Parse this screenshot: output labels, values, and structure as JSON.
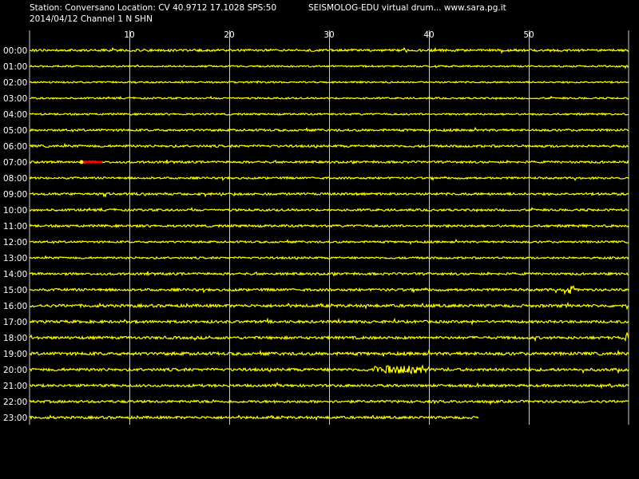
{
  "header": {
    "station_line": "Station: Conversano Location: CV 40.9712 17.1028 SPS:50",
    "brand_line": "SEISMOLOG-EDU virtual drum... www.sara.pg.it",
    "date_line": "2014/04/12  Channel 1 N SHN"
  },
  "chart_data": {
    "type": "line",
    "title": "",
    "xlabel": "",
    "ylabel": "",
    "xlim": [
      0,
      60
    ],
    "x_ticks": [
      10,
      20,
      30,
      40,
      50
    ],
    "x_tick_labels": [
      "10",
      "20",
      "30",
      "40",
      "50"
    ],
    "grid": true,
    "categories": [
      "00:00",
      "01:00",
      "02:00",
      "03:00",
      "04:00",
      "05:00",
      "06:00",
      "07:00",
      "08:00",
      "09:00",
      "10:00",
      "11:00",
      "12:00",
      "13:00",
      "14:00",
      "15:00",
      "16:00",
      "17:00",
      "18:00",
      "19:00",
      "20:00",
      "21:00",
      "22:00",
      "23:00"
    ],
    "series": [
      {
        "name": "",
        "end_minute": 60,
        "noise": 1.4
      },
      {
        "name": "",
        "end_minute": 60,
        "noise": 1.0
      },
      {
        "name": "",
        "end_minute": 60,
        "noise": 1.0
      },
      {
        "name": "",
        "end_minute": 60,
        "noise": 1.0
      },
      {
        "name": "",
        "end_minute": 60,
        "noise": 1.1
      },
      {
        "name": "",
        "end_minute": 60,
        "noise": 1.3
      },
      {
        "name": "",
        "end_minute": 60,
        "noise": 1.4
      },
      {
        "name": "",
        "end_minute": 60,
        "noise": 1.3
      },
      {
        "name": "",
        "end_minute": 60,
        "noise": 1.2
      },
      {
        "name": "",
        "end_minute": 60,
        "noise": 1.4
      },
      {
        "name": "",
        "end_minute": 60,
        "noise": 1.3
      },
      {
        "name": "",
        "end_minute": 60,
        "noise": 1.4
      },
      {
        "name": "",
        "end_minute": 60,
        "noise": 1.2
      },
      {
        "name": "",
        "end_minute": 60,
        "noise": 1.2
      },
      {
        "name": "",
        "end_minute": 60,
        "noise": 1.4
      },
      {
        "name": "",
        "end_minute": 60,
        "noise": 1.5
      },
      {
        "name": "",
        "end_minute": 60,
        "noise": 1.7
      },
      {
        "name": "",
        "end_minute": 60,
        "noise": 1.6
      },
      {
        "name": "",
        "end_minute": 60,
        "noise": 1.6
      },
      {
        "name": "",
        "end_minute": 60,
        "noise": 1.8
      },
      {
        "name": "",
        "end_minute": 60,
        "noise": 1.7
      },
      {
        "name": "",
        "end_minute": 60,
        "noise": 1.5
      },
      {
        "name": "",
        "end_minute": 60,
        "noise": 1.5
      },
      {
        "name": "",
        "end_minute": 45,
        "noise": 1.5
      }
    ],
    "bursts": [
      {
        "row": 20,
        "start_minute": 34.5,
        "end_minute": 40,
        "amp": 5
      },
      {
        "row": 15,
        "start_minute": 53.5,
        "end_minute": 54.5,
        "amp": 5
      },
      {
        "row": 18,
        "start_minute": 59.5,
        "end_minute": 60,
        "amp": 6
      }
    ],
    "marker": {
      "row": 7,
      "start_minute": 5.2,
      "end_minute": 7.3
    }
  },
  "colors": {
    "background": "#000000",
    "text": "#ffffff",
    "trace": "#ffff00",
    "grid": "#c8c8c8",
    "marker": "#ff0000"
  }
}
